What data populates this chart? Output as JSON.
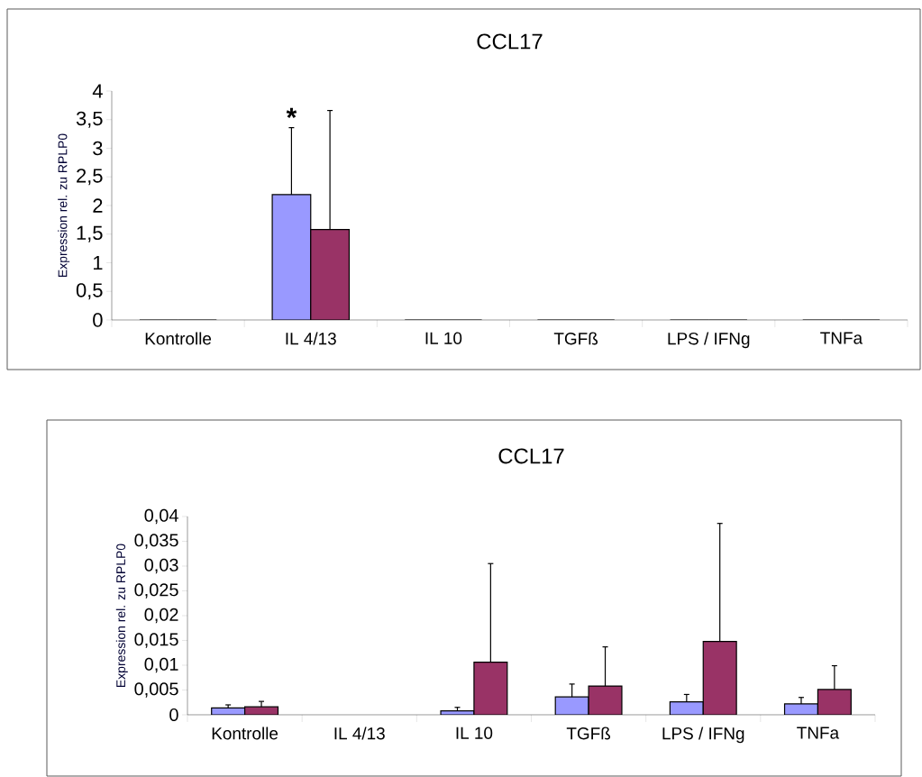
{
  "chart_data": [
    {
      "type": "bar",
      "title": "CCL17",
      "ylabel": "Expression rel. zu RPLP0",
      "categories": [
        "Kontrolle",
        "IL 4/13",
        "IL 10",
        "TGFß",
        "LPS / IFNg",
        "TNFa"
      ],
      "series": [
        {
          "color": "#9999ff",
          "values": [
            0,
            2.19,
            0,
            0,
            0,
            0
          ],
          "errors": [
            null,
            1.17,
            null,
            null,
            null,
            null
          ]
        },
        {
          "color": "#993366",
          "values": [
            0,
            1.58,
            0,
            0,
            0,
            0
          ],
          "errors": [
            null,
            2.08,
            null,
            null,
            null,
            null
          ]
        }
      ],
      "ylim": [
        0,
        4
      ],
      "yticks": [
        0,
        {
          "value": 0.5,
          "label": "0,5"
        },
        1,
        {
          "value": 1.5,
          "label": "1,5"
        },
        2,
        {
          "value": 2.5,
          "label": "2,5"
        },
        3,
        {
          "value": 3.5,
          "label": "3,5"
        },
        4
      ],
      "annotations": [
        "*"
      ]
    },
    {
      "type": "bar",
      "title": "CCL17",
      "ylabel": "Expression rel. zu RPLP0",
      "categories": [
        "Kontrolle",
        "IL 4/13",
        "IL 10",
        "TGFß",
        "LPS / IFNg",
        "TNFa"
      ],
      "series": [
        {
          "color": "#9999ff",
          "values": [
            0.0014,
            null,
            0.0008,
            0.0036,
            0.0026,
            0.0022
          ],
          "errors": [
            0.0006,
            null,
            0.0007,
            0.0026,
            0.0015,
            0.0013
          ]
        },
        {
          "color": "#993366",
          "values": [
            0.0016,
            null,
            0.0106,
            0.0058,
            0.0148,
            0.0051
          ],
          "errors": [
            0.0011,
            null,
            0.0199,
            0.0079,
            0.0238,
            0.0048
          ]
        }
      ],
      "ylim": [
        0,
        0.04
      ],
      "yticks": [
        0,
        {
          "value": 0.005,
          "label": "0,005"
        },
        {
          "value": 0.01,
          "label": "0,01"
        },
        {
          "value": 0.015,
          "label": "0,015"
        },
        {
          "value": 0.02,
          "label": "0,02"
        },
        {
          "value": 0.025,
          "label": "0,025"
        },
        {
          "value": 0.03,
          "label": "0,03"
        },
        {
          "value": 0.035,
          "label": "0,035"
        },
        {
          "value": 0.04,
          "label": "0,04"
        }
      ]
    }
  ]
}
